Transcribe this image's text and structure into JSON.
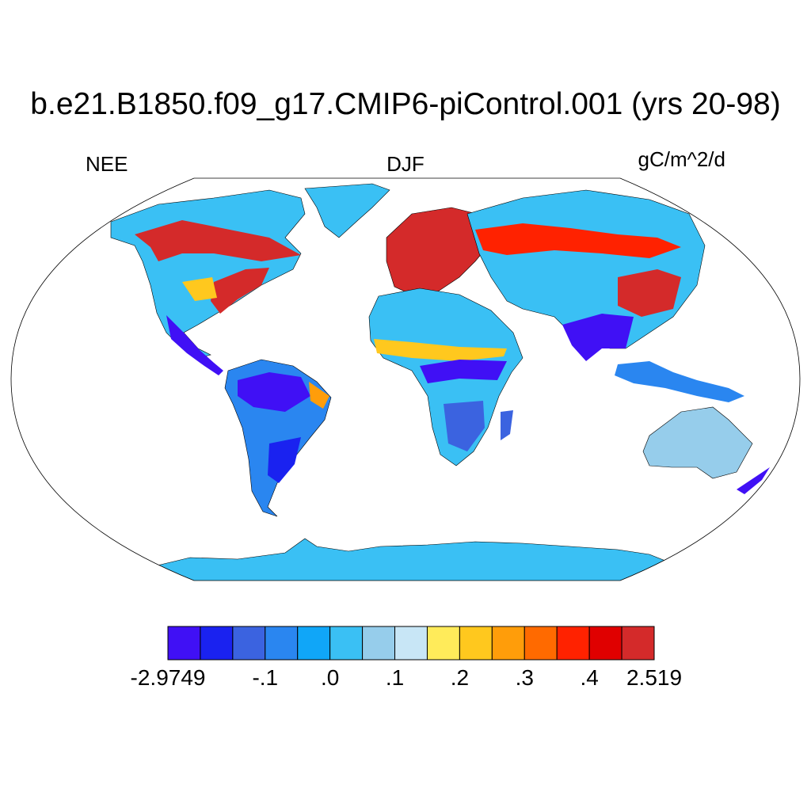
{
  "title": "b.e21.B1850.f09_g17.CMIP6-piControl.001 (yrs 20-98)",
  "left_label": "NEE",
  "center_label": "DJF",
  "right_label": "gC/m^2/d",
  "colorbar": {
    "colors": [
      "#4010f5",
      "#1a22f0",
      "#3b63e0",
      "#2a86f0",
      "#10a6f8",
      "#3ac0f4",
      "#96cdeb",
      "#c8e6f6",
      "#ffeb5a",
      "#ffc81e",
      "#ff9d0a",
      "#ff6a00",
      "#ff2200",
      "#e00000",
      "#d42a2a"
    ],
    "tick_labels": [
      "-2.9749",
      "-.1",
      ".0",
      ".1",
      ".2",
      ".3",
      ".4",
      "2.519"
    ],
    "tick_indices": [
      0,
      3,
      5,
      7,
      9,
      11,
      13,
      15
    ]
  },
  "map": {
    "projection": "Robinson",
    "ocean_color": "#ffffff",
    "coastline_color": "#000000"
  }
}
